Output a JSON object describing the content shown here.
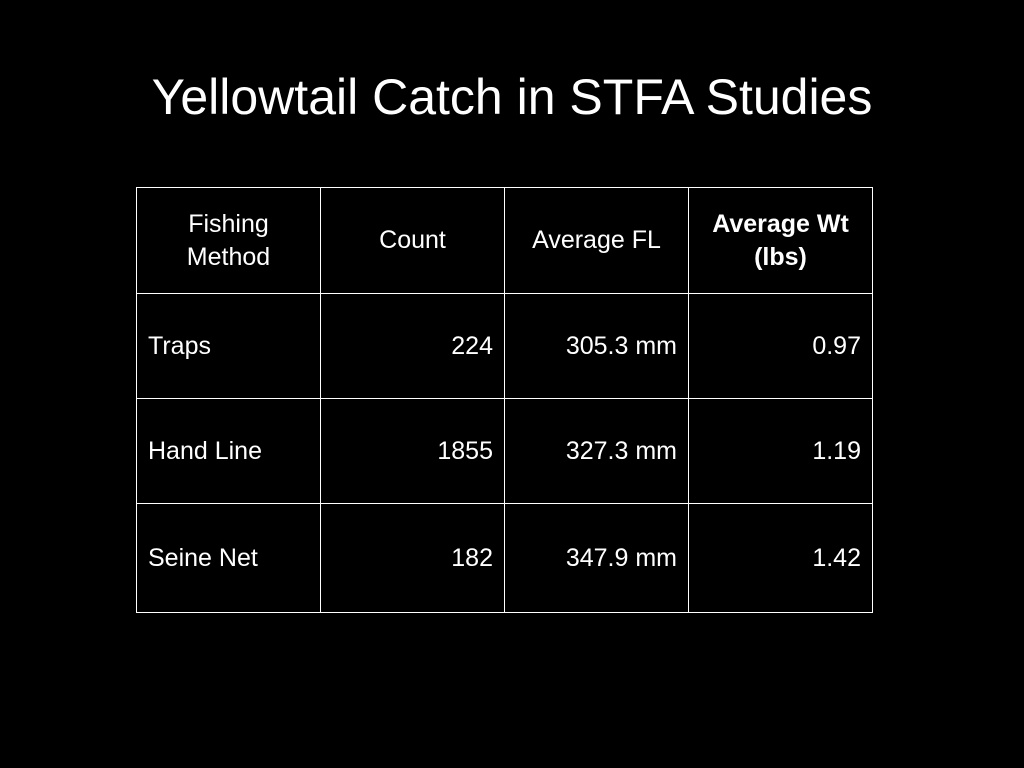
{
  "title": "Yellowtail Catch in STFA Studies",
  "table": {
    "header": [
      "Fishing Method",
      "Count",
      "Average FL",
      "Average Wt (lbs)"
    ],
    "rows": [
      [
        "Traps",
        "224",
        "305.3 mm",
        "0.97"
      ],
      [
        "Hand Line",
        "1855",
        "327.3 mm",
        "1.19"
      ],
      [
        "Seine Net",
        "182",
        "347.9 mm",
        "1.42"
      ]
    ]
  }
}
